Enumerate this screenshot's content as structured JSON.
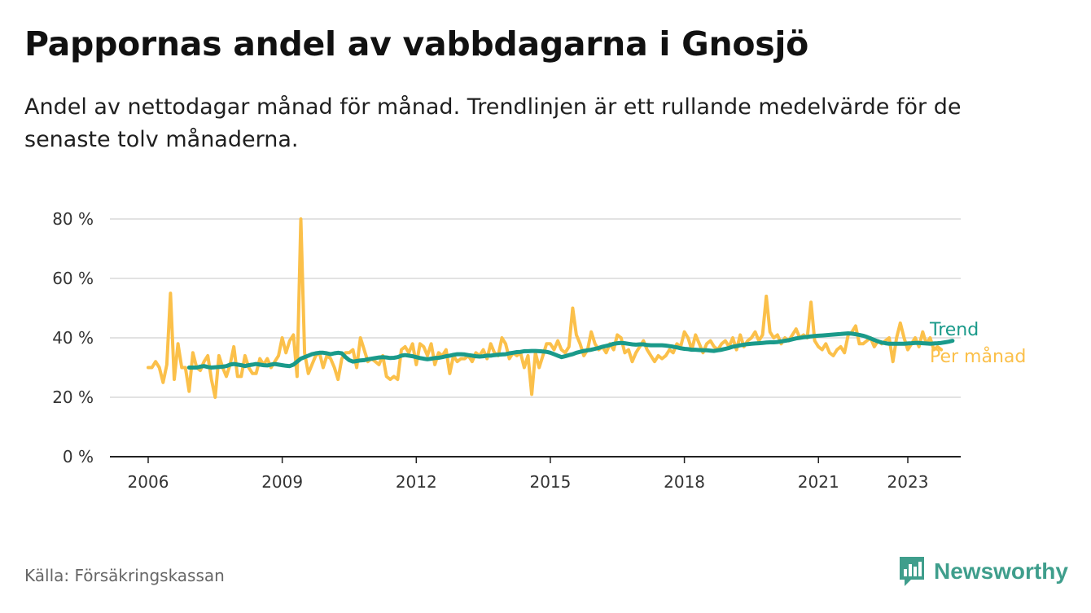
{
  "title": "Pappornas andel av vabbdagarna i Gnosjö",
  "subtitle": "Andel av nettodagar månad för månad. Trendlinjen är ett rullande medelvärde för de senaste tolv månaderna.",
  "source": "Källa: Försäkringskassan",
  "brand": {
    "name": "Newsworthy",
    "icon": "newsworthy-logo-icon",
    "color": "#3f9e8c"
  },
  "chart_data": {
    "type": "line",
    "x_unit": "year",
    "xlim": [
      2006.0,
      2023.8
    ],
    "ylim": [
      0,
      80
    ],
    "yticks": [
      0,
      20,
      40,
      60,
      80
    ],
    "ytick_labels": [
      "0 %",
      "20 %",
      "40 %",
      "60 %",
      "80 %"
    ],
    "xticks": [
      2006,
      2009,
      2012,
      2015,
      2018,
      2021,
      2023
    ],
    "xtick_labels": [
      "2006",
      "2009",
      "2012",
      "2015",
      "2018",
      "2021",
      "2023"
    ],
    "grid": true,
    "legend": "right-end labels",
    "series": [
      {
        "name": "Per månad",
        "color": "#fbc04a",
        "x_start": 2006.0,
        "step": 0.08333,
        "values": [
          30,
          30,
          32,
          30,
          25,
          31,
          55,
          26,
          38,
          30,
          30,
          22,
          35,
          30,
          29,
          32,
          34,
          26,
          20,
          34,
          30,
          27,
          31,
          37,
          27,
          27,
          34,
          30,
          28,
          28,
          33,
          31,
          33,
          30,
          32,
          34,
          40,
          35,
          39,
          41,
          27,
          80,
          35,
          28,
          31,
          34,
          35,
          30,
          34,
          33,
          30,
          26,
          33,
          35,
          35,
          36,
          30,
          40,
          36,
          32,
          33,
          32,
          31,
          34,
          27,
          26,
          27,
          26,
          36,
          37,
          35,
          38,
          31,
          38,
          37,
          34,
          38,
          31,
          35,
          34,
          36,
          28,
          34,
          32,
          33,
          33,
          34,
          32,
          35,
          34,
          36,
          33,
          38,
          35,
          34,
          40,
          38,
          33,
          35,
          34,
          35,
          30,
          34,
          21,
          35,
          30,
          34,
          38,
          38,
          36,
          39,
          36,
          35,
          37,
          50,
          41,
          38,
          34,
          36,
          42,
          38,
          36,
          37,
          35,
          38,
          36,
          41,
          40,
          35,
          36,
          32,
          35,
          37,
          39,
          36,
          34,
          32,
          34,
          33,
          34,
          36,
          35,
          38,
          37,
          42,
          40,
          36,
          41,
          38,
          35,
          38,
          39,
          37,
          36,
          38,
          39,
          37,
          40,
          36,
          41,
          37,
          39,
          40,
          42,
          39,
          41,
          54,
          42,
          40,
          41,
          38,
          40,
          39,
          41,
          43,
          40,
          41,
          40,
          52,
          39,
          37,
          36,
          38,
          35,
          34,
          36,
          37,
          35,
          41,
          42,
          44,
          38,
          38,
          39,
          40,
          37,
          39,
          38,
          39,
          40,
          32,
          40,
          45,
          40,
          36,
          38,
          40,
          37,
          42,
          38,
          40,
          36,
          37,
          36
        ]
      },
      {
        "name": "Trend",
        "color": "#1a9a8a",
        "x_start": 2006.917,
        "step": 0.08333,
        "values": [
          30,
          30,
          30,
          30.3,
          30.5,
          30.2,
          30,
          30.1,
          30.2,
          30.3,
          30.5,
          31,
          31.2,
          31,
          30.8,
          30.5,
          30.8,
          31,
          31.2,
          31,
          30.8,
          30.7,
          31,
          31.2,
          31,
          30.8,
          30.6,
          30.5,
          31,
          32,
          33,
          33.5,
          34,
          34.5,
          34.8,
          35,
          35,
          34.8,
          34.5,
          34.8,
          35,
          34.8,
          33.5,
          32.5,
          32,
          32.2,
          32.4,
          32.5,
          32.8,
          33,
          33.2,
          33.4,
          33.5,
          33.4,
          33.2,
          33.3,
          33.5,
          34,
          34.2,
          34,
          33.8,
          33.5,
          33.2,
          33,
          32.8,
          33,
          33.2,
          33.3,
          33.5,
          33.8,
          34,
          34.3,
          34.5,
          34.5,
          34.4,
          34.2,
          34,
          33.8,
          33.7,
          33.8,
          34,
          34,
          34.2,
          34.3,
          34.4,
          34.5,
          34.8,
          35,
          35.2,
          35.3,
          35.5,
          35.5,
          35.6,
          35.6,
          35.5,
          35.4,
          35.3,
          35,
          34.5,
          34,
          33.5,
          33.8,
          34.2,
          34.5,
          35,
          35.3,
          35.6,
          35.8,
          36,
          36.3,
          36.6,
          37,
          37.3,
          37.6,
          38,
          38.2,
          38.3,
          38.2,
          38,
          37.8,
          37.7,
          37.8,
          37.8,
          37.6,
          37.5,
          37.5,
          37.5,
          37.5,
          37.4,
          37.2,
          37,
          36.8,
          36.5,
          36.3,
          36.2,
          36,
          36,
          35.9,
          35.8,
          35.8,
          35.7,
          35.6,
          35.8,
          36,
          36.3,
          36.6,
          37,
          37.2,
          37.5,
          37.7,
          37.9,
          38,
          38.1,
          38.2,
          38.3,
          38.4,
          38.5,
          38.5,
          38.6,
          38.8,
          39,
          39.2,
          39.5,
          39.8,
          40,
          40.2,
          40.3,
          40.5,
          40.6,
          40.7,
          40.8,
          40.9,
          41,
          41.1,
          41.2,
          41.3,
          41.4,
          41.5,
          41.4,
          41.2,
          41,
          40.7,
          40.3,
          39.8,
          39.3,
          38.8,
          38.4,
          38.2,
          38,
          38,
          38,
          38,
          38,
          38.1,
          38.2,
          38.3,
          38.3,
          38.2,
          38.1,
          38,
          38.1,
          38.2,
          38.3,
          38.5,
          38.7,
          39
        ]
      }
    ]
  }
}
